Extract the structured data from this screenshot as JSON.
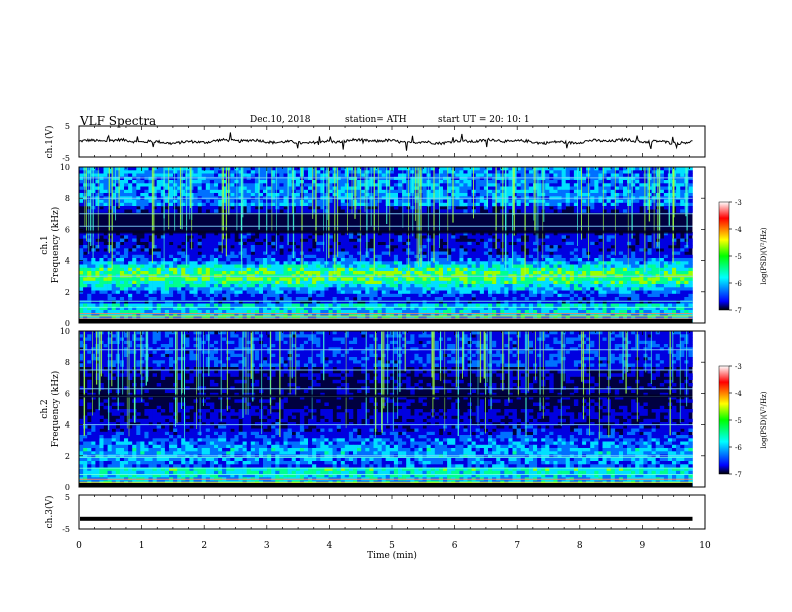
{
  "header": {
    "title": "VLF Spectra",
    "date": "Dec.10, 2018",
    "station": "station= ATH",
    "start_ut": "start  UT  =   20: 10: 1"
  },
  "colors": {
    "trace": "#000000",
    "colormap": [
      "#000000",
      "#0000ff",
      "#00ffff",
      "#00ff00",
      "#ffff00",
      "#ff0000",
      "#ffffff"
    ]
  },
  "chart_data": [
    {
      "type": "line",
      "name": "ch1-waveform",
      "ylabel": "ch.1(V)",
      "xlim": [
        0,
        10
      ],
      "ylim": [
        -5,
        5
      ],
      "yticks": [
        "5",
        "-5"
      ],
      "data_extent_min": 9.8,
      "approx_mean_v": 0.0,
      "approx_amplitude_v": 1.0
    },
    {
      "type": "heatmap",
      "name": "ch1-spectrogram",
      "ylabel": "ch.1\nFrequency  (kHz)",
      "xlim": [
        0,
        10
      ],
      "ylim": [
        0,
        10
      ],
      "yticks": [
        "0",
        "2",
        "4",
        "6",
        "8",
        "10"
      ],
      "colorbar": {
        "label": "log(PSD)(V²/Hz)",
        "range": [
          -7,
          -3
        ],
        "ticks": [
          "-3",
          "-4",
          "-5",
          "-6",
          "-7"
        ]
      }
    },
    {
      "type": "heatmap",
      "name": "ch2-spectrogram",
      "ylabel": "ch.2\nFrequency  (kHz)",
      "xlim": [
        0,
        10
      ],
      "ylim": [
        0,
        10
      ],
      "yticks": [
        "0",
        "2",
        "4",
        "6",
        "8",
        "10"
      ],
      "colorbar": {
        "label": "log(PSD)(V²/Hz)",
        "range": [
          -7,
          -3
        ],
        "ticks": [
          "-3",
          "-4",
          "-5",
          "-6",
          "-7"
        ]
      }
    },
    {
      "type": "line",
      "name": "ch3-waveform",
      "ylabel": "ch.3(V)",
      "xlabel": "Time  (min)",
      "xlim": [
        0,
        10
      ],
      "ylim": [
        -5,
        5
      ],
      "yticks": [
        "5",
        "-5"
      ],
      "xticks": [
        "0",
        "1",
        "2",
        "3",
        "4",
        "5",
        "6",
        "7",
        "8",
        "9",
        "10"
      ],
      "data_extent_min": 9.8,
      "approx_mean_v": -2.0
    }
  ]
}
